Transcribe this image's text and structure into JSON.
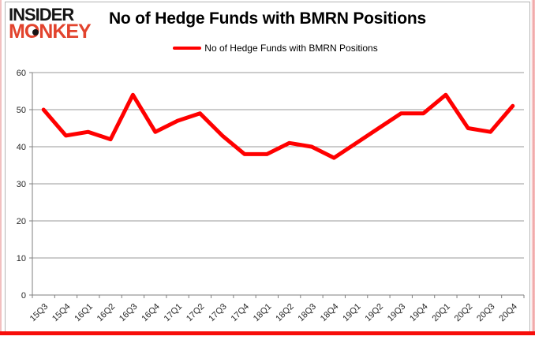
{
  "logo": {
    "line1": "INSIDER",
    "line2": "MONKEY",
    "accent_color": "#e2432d"
  },
  "chart_data": {
    "type": "line",
    "title": "No of Hedge Funds with BMRN Positions",
    "categories": [
      "15Q3",
      "15Q4",
      "16Q1",
      "16Q2",
      "16Q3",
      "16Q4",
      "17Q1",
      "17Q2",
      "17Q3",
      "17Q4",
      "18Q1",
      "18Q2",
      "18Q3",
      "18Q4",
      "19Q1",
      "19Q2",
      "19Q3",
      "19Q4",
      "20Q1",
      "20Q2",
      "20Q3",
      "20Q4"
    ],
    "series": [
      {
        "name": "No of Hedge Funds with BMRN Positions",
        "color": "#ff0000",
        "values": [
          50,
          43,
          44,
          42,
          54,
          44,
          47,
          49,
          43,
          38,
          38,
          41,
          40,
          37,
          41,
          45,
          49,
          49,
          54,
          45,
          44,
          51
        ]
      }
    ],
    "xlabel": "",
    "ylabel": "",
    "ylim": [
      0,
      60
    ],
    "ytick_step": 10,
    "yticks": [
      0,
      10,
      20,
      30,
      40,
      50,
      60
    ],
    "grid": true,
    "legend_position": "top-center"
  },
  "colors": {
    "line_red": "#ff0000",
    "grid": "#9a9a9a",
    "axis": "#7f7f7f",
    "tick_label": "#262626",
    "bottom_bar": "#f70d0a",
    "frame_border": "#b3b3b3"
  }
}
